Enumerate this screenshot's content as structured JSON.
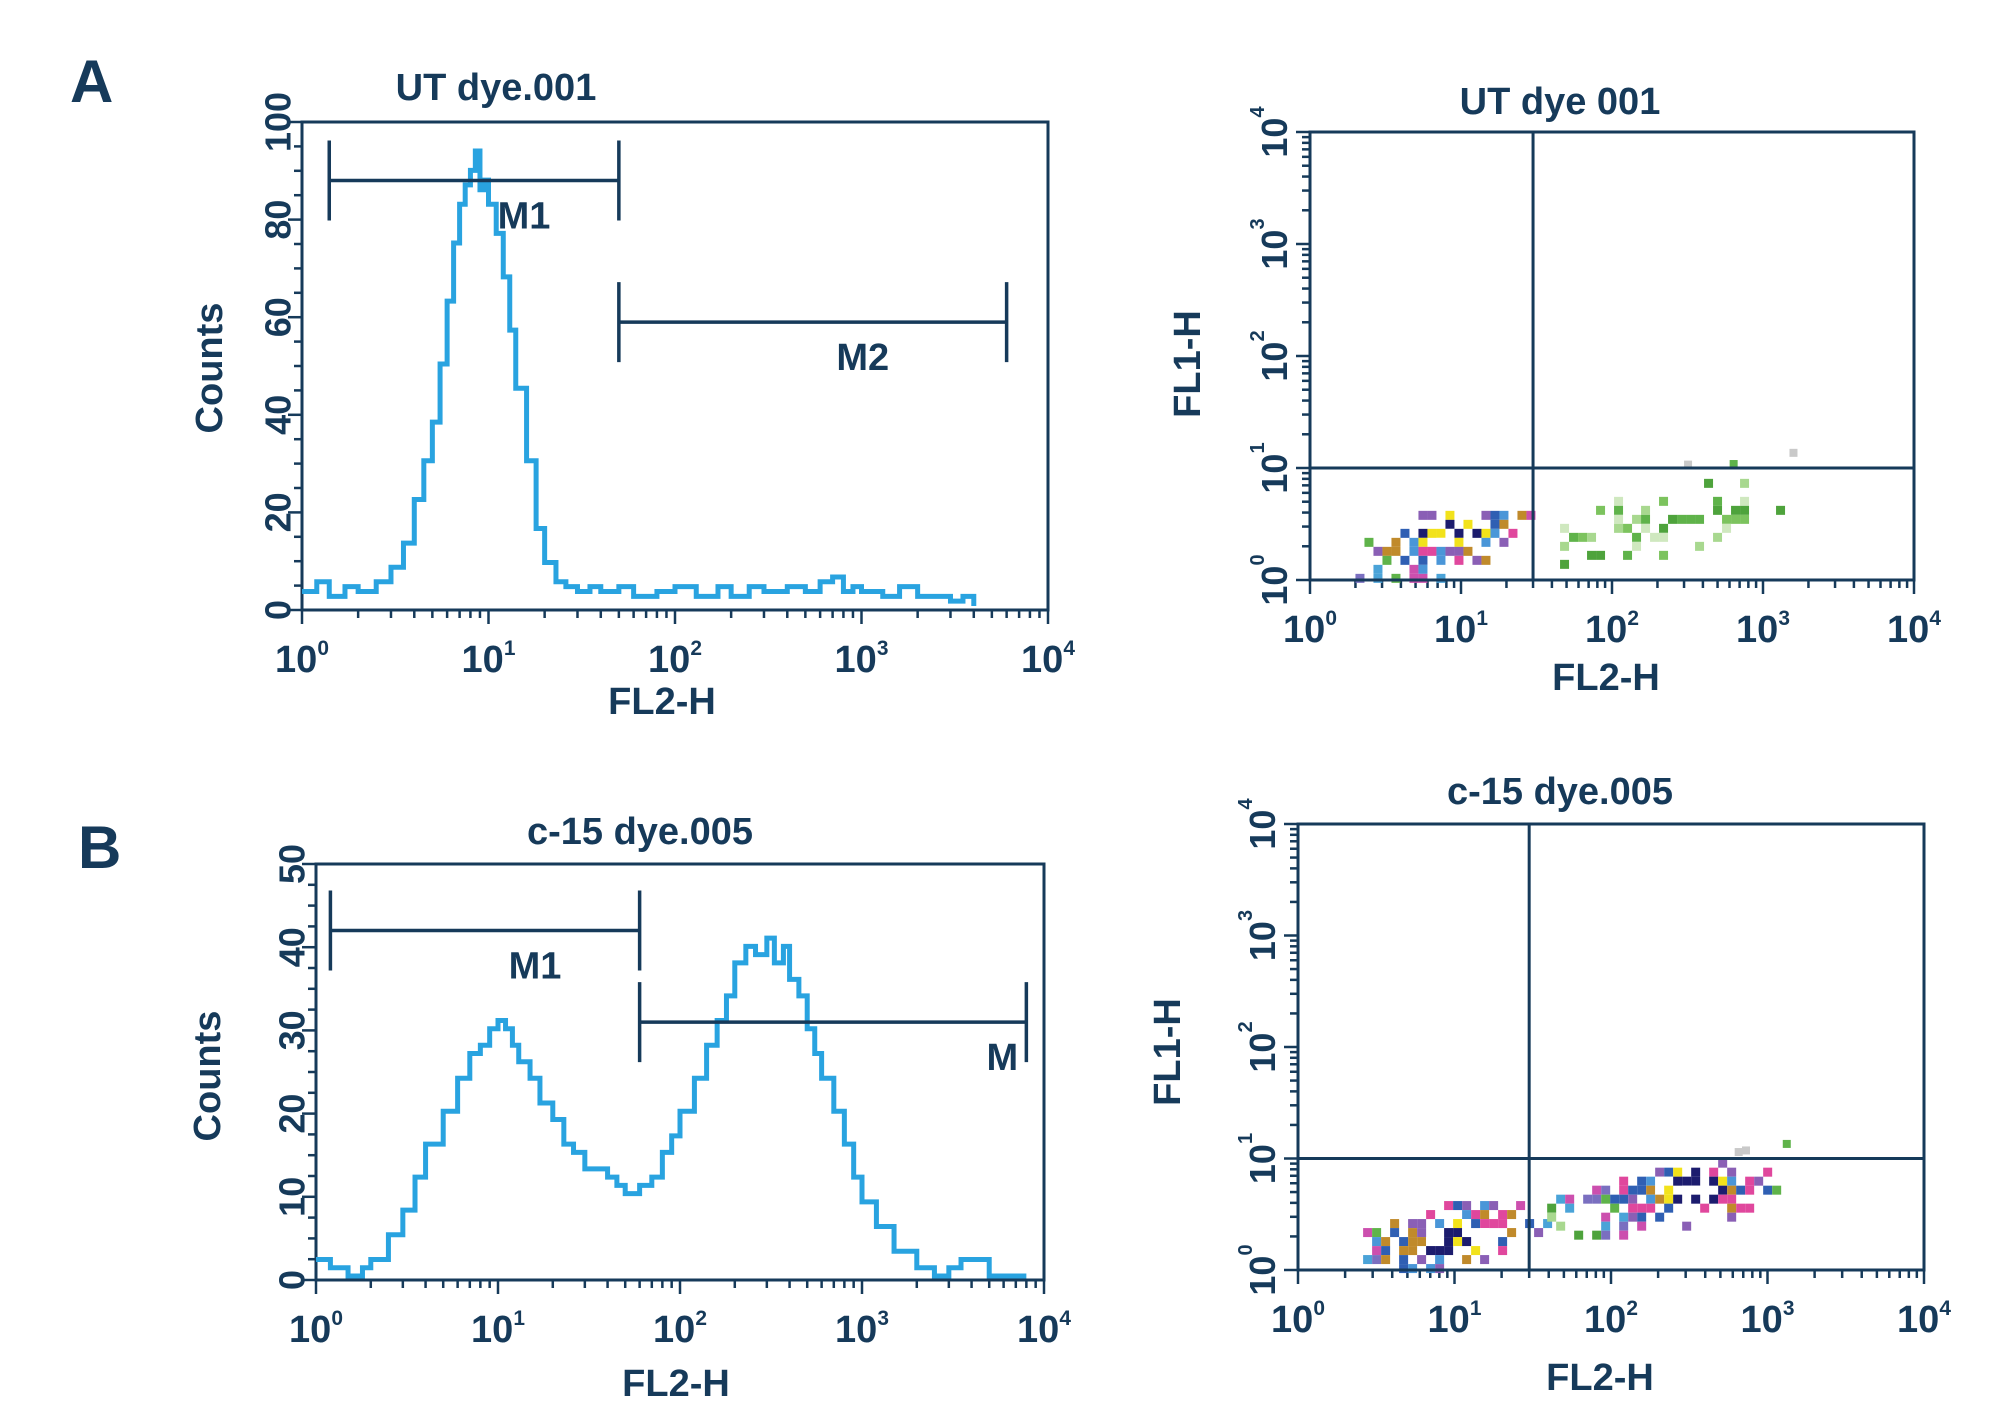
{
  "panel_labels": [
    "A",
    "B"
  ],
  "colors": {
    "ink": "#163a5a",
    "histogram": "#29a3e0"
  },
  "chart_data": [
    {
      "id": "A-hist",
      "type": "line",
      "title": "UT dye.001",
      "xlabel": "FL2-H",
      "ylabel": "Counts",
      "x_scale": "log",
      "xlim": [
        1,
        10000
      ],
      "ylim": [
        0,
        100
      ],
      "x_ticks": [
        1,
        10,
        100,
        1000,
        10000
      ],
      "y_ticks": [
        0,
        20,
        40,
        60,
        80,
        100
      ],
      "series": [
        {
          "x": [
            1,
            1.2,
            1.4,
            1.7,
            2,
            2.5,
            3,
            3.5,
            4,
            4.5,
            5,
            5.5,
            6,
            6.5,
            7,
            7.5,
            8,
            8.5,
            9,
            9.5,
            10,
            11,
            12,
            13,
            14,
            16,
            18,
            20,
            23,
            26,
            30,
            35,
            40,
            50,
            60,
            80,
            100,
            130,
            170,
            200,
            250,
            300,
            400,
            500,
            600,
            700,
            800,
            900,
            1000,
            1300,
            1600,
            2000,
            2500,
            3000,
            3500,
            4000
          ],
          "y": [
            3,
            5,
            2,
            4,
            3,
            5,
            8,
            13,
            22,
            30,
            38,
            50,
            63,
            75,
            83,
            87,
            90,
            94,
            86,
            88,
            83,
            77,
            68,
            57,
            45,
            30,
            16,
            9,
            5,
            4,
            3,
            4,
            3,
            4,
            2,
            3,
            4,
            2,
            4,
            2,
            4,
            3,
            4,
            3,
            5,
            6,
            3,
            4,
            3,
            2,
            4,
            2,
            2,
            1,
            2,
            0
          ]
        }
      ],
      "markers": [
        {
          "label": "M1",
          "x_range": [
            1.4,
            50
          ],
          "y": 88
        },
        {
          "label": "M2",
          "x_range": [
            50,
            6000
          ],
          "y": 59
        }
      ]
    },
    {
      "id": "A-dot",
      "type": "heatmap",
      "title": "UT dye 001",
      "xlabel": "FL2-H",
      "ylabel": "FL1-H",
      "x_scale": "log",
      "y_scale": "log",
      "xlim": [
        1,
        10000
      ],
      "ylim": [
        1,
        10000
      ],
      "x_ticks": [
        1,
        10,
        100,
        1000,
        10000
      ],
      "y_ticks": [
        1,
        10,
        100,
        1000,
        10000
      ],
      "quadrant_gate": {
        "x": 30,
        "y": 10
      },
      "clusters": [
        {
          "x": [
            2,
            30
          ],
          "y": [
            1,
            6
          ],
          "density": "high",
          "center": [
            8,
            3
          ]
        },
        {
          "x": [
            30,
            1500
          ],
          "y": [
            1.5,
            8
          ],
          "density": "low"
        }
      ]
    },
    {
      "id": "B-hist",
      "type": "line",
      "title": "c-15 dye.005",
      "xlabel": "FL2-H",
      "ylabel": "Counts",
      "x_scale": "log",
      "xlim": [
        1,
        10000
      ],
      "ylim": [
        0,
        50
      ],
      "x_ticks": [
        1,
        10,
        100,
        1000,
        10000
      ],
      "y_ticks": [
        0,
        10,
        20,
        30,
        40,
        50
      ],
      "series": [
        {
          "x": [
            1,
            1.2,
            1.5,
            1.8,
            2,
            2.5,
            3,
            3.5,
            4,
            5,
            6,
            7,
            8,
            9,
            10,
            11,
            12,
            13,
            15,
            17,
            20,
            23,
            26,
            30,
            35,
            40,
            45,
            50,
            60,
            70,
            80,
            90,
            100,
            120,
            140,
            160,
            180,
            200,
            230,
            260,
            300,
            330,
            370,
            400,
            450,
            500,
            550,
            600,
            700,
            800,
            900,
            1000,
            1200,
            1500,
            2000,
            2500,
            3000,
            3500,
            5000,
            8000
          ],
          "y": [
            2,
            1,
            0,
            1,
            2,
            5,
            8,
            12,
            16,
            20,
            24,
            27,
            28,
            30,
            31,
            30,
            28,
            26,
            24,
            21,
            19,
            16,
            15,
            13,
            13,
            12,
            11,
            10,
            11,
            12,
            15,
            17,
            20,
            24,
            28,
            31,
            34,
            38,
            40,
            39,
            41,
            38,
            40,
            36,
            34,
            30,
            27,
            24,
            20,
            16,
            12,
            9,
            6,
            3,
            1,
            0,
            1,
            2,
            0,
            0
          ]
        }
      ],
      "markers": [
        {
          "label": "M1",
          "x_range": [
            1.2,
            60
          ],
          "y": 42
        },
        {
          "label": "M",
          "x_range": [
            60,
            8000
          ],
          "y": 31
        }
      ]
    },
    {
      "id": "B-dot",
      "type": "heatmap",
      "title": "c-15 dye.005",
      "xlabel": "FL2-H",
      "ylabel": "FL1-H",
      "x_scale": "log",
      "y_scale": "log",
      "xlim": [
        1,
        10000
      ],
      "ylim": [
        1,
        10000
      ],
      "x_ticks": [
        1,
        10,
        100,
        1000,
        10000
      ],
      "y_ticks": [
        1,
        10,
        100,
        1000,
        10000
      ],
      "quadrant_gate": {
        "x": 30,
        "y": 10
      },
      "clusters": [
        {
          "x": [
            2,
            40
          ],
          "y": [
            1,
            5
          ],
          "density": "high",
          "center": [
            10,
            2
          ]
        },
        {
          "x": [
            30,
            1500
          ],
          "y": [
            2,
            12
          ],
          "density": "high",
          "center": [
            300,
            6
          ]
        }
      ]
    }
  ]
}
